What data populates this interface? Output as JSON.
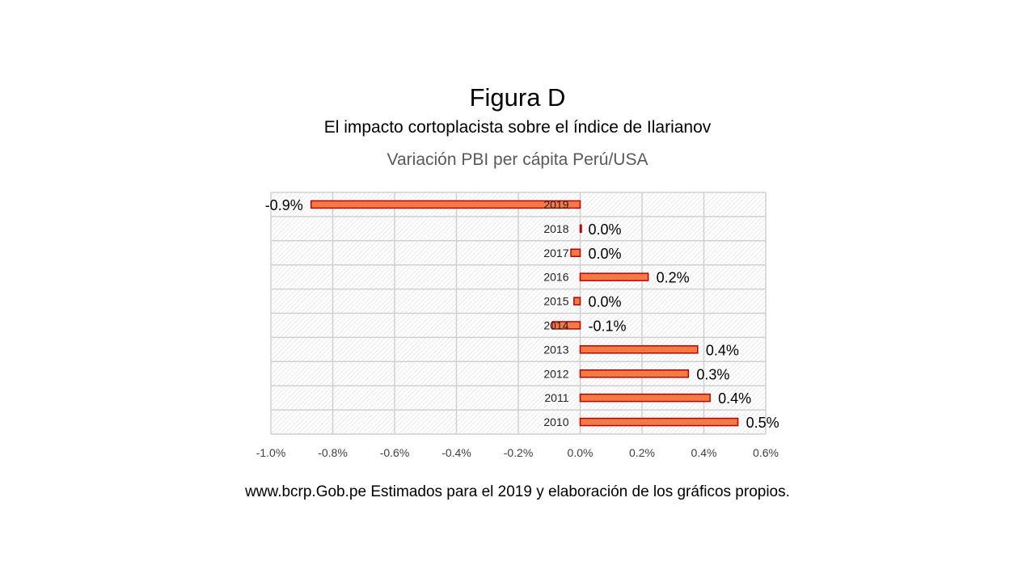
{
  "figure": {
    "title": "Figura D",
    "subtitle": "El impacto cortoplacista sobre el índice de Ilarianov",
    "source_note": "www.bcrp.Gob.pe Estimados para el 2019 y elaboración de los gráficos propios."
  },
  "chart_data": {
    "type": "bar",
    "orientation": "horizontal",
    "title": "Variación PBI per cápita Perú/USA",
    "categories": [
      "2019",
      "2018",
      "2017",
      "2016",
      "2015",
      "2014",
      "2013",
      "2012",
      "2011",
      "2010"
    ],
    "values": [
      -0.87,
      0.0,
      -0.03,
      0.22,
      -0.02,
      -0.09,
      0.38,
      0.35,
      0.42,
      0.51
    ],
    "data_labels": [
      "-0.9%",
      "0.0%",
      "0.0%",
      "0.2%",
      "0.0%",
      "-0.1%",
      "0.4%",
      "0.3%",
      "0.4%",
      "0.5%"
    ],
    "xlim": [
      -1.0,
      0.6
    ],
    "x_ticks": [
      -1.0,
      -0.8,
      -0.6,
      -0.4,
      -0.2,
      0.0,
      0.2,
      0.4,
      0.6
    ],
    "x_tick_labels": [
      "-1.0%",
      "-0.8%",
      "-0.6%",
      "-0.4%",
      "-0.2%",
      "0.0%",
      "0.2%",
      "0.4%",
      "0.6%"
    ],
    "grid": true,
    "bar_color": "#f47a45",
    "bar_edge_color": "#c00000",
    "xlabel": "",
    "ylabel": ""
  }
}
